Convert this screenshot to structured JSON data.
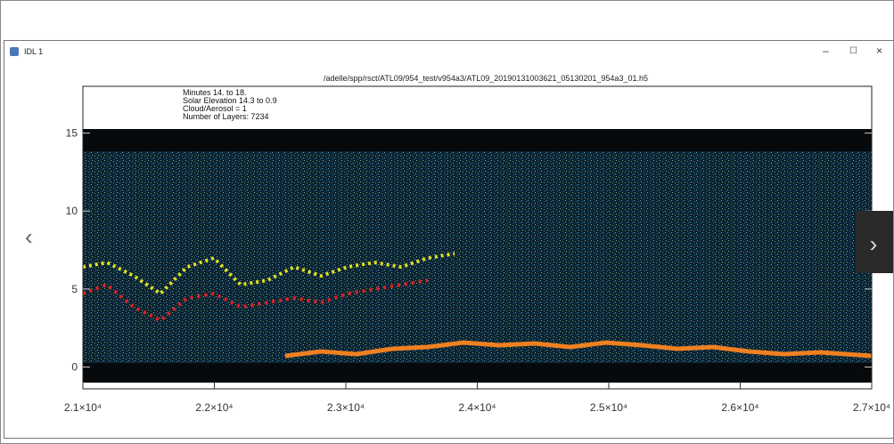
{
  "window": {
    "title": "IDL 1"
  },
  "plot": {
    "title": "/adelle/spp/rsct/ATL09/954_test/v954a3/ATL09_20190131003621_05130201_954a3_01.h5",
    "annotations": [
      "Minutes 14. to 18.",
      "Solar Elevation 14.3 to 0.9",
      "Cloud/Aerosol = 1",
      "Number of Layers: 7234"
    ],
    "ylim": [
      -1.4,
      18
    ],
    "yticks": [
      0,
      5,
      10,
      15
    ],
    "xlim": [
      21000,
      27000
    ],
    "xticks": [
      {
        "value": 21000,
        "label": "2.1×10⁴"
      },
      {
        "value": 22000,
        "label": "2.2×10⁴"
      },
      {
        "value": 23000,
        "label": "2.3×10⁴"
      },
      {
        "value": 24000,
        "label": "2.4×10⁴"
      },
      {
        "value": 25000,
        "label": "2.5×10⁴"
      },
      {
        "value": 26000,
        "label": "2.6×10⁴"
      },
      {
        "value": 27000,
        "label": "2.7×10⁴"
      }
    ]
  }
}
